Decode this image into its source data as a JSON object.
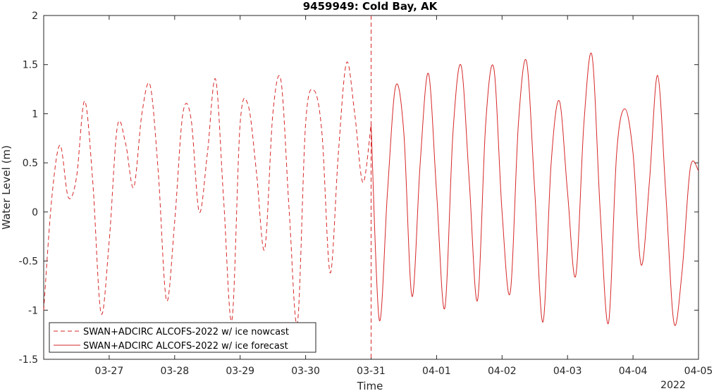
{
  "chart_data": {
    "type": "line",
    "title": "9459949: Cold Bay, AK",
    "xlabel": "Time",
    "ylabel": "Water Level (m)",
    "x_year_label": "2022",
    "ylim": [
      -1.5,
      2
    ],
    "xlim": [
      "2022-03-26 00:00",
      "2022-04-05 00:00"
    ],
    "yticks": [
      "-1.5",
      "-1",
      "-0.5",
      "0",
      "0.5",
      "1",
      "1.5",
      "2"
    ],
    "xticks": [
      "03-27",
      "03-28",
      "03-29",
      "03-30",
      "03-31",
      "04-01",
      "04-02",
      "04-03",
      "04-04",
      "04-05"
    ],
    "grid": false,
    "legend_position": "bottom-left",
    "forecast_start": "2022-03-31 00:00",
    "colors": {
      "series": "#d62728",
      "axis": "#262626"
    },
    "series": [
      {
        "name": "SWAN+ADCIRC ALCOFS-2022 w/ ice nowcast",
        "style": "dashed",
        "x": [
          "03-26 00:00",
          "03-26 03:00",
          "03-26 06:00",
          "03-26 09:00",
          "03-26 12:00",
          "03-26 15:00",
          "03-26 18:00",
          "03-26 21:00",
          "03-27 00:00",
          "03-27 03:00",
          "03-27 06:00",
          "03-27 09:00",
          "03-27 12:00",
          "03-27 15:00",
          "03-27 18:00",
          "03-27 21:00",
          "03-28 00:00",
          "03-28 03:00",
          "03-28 06:00",
          "03-28 09:00",
          "03-28 12:00",
          "03-28 15:00",
          "03-28 18:00",
          "03-28 21:00",
          "03-29 00:00",
          "03-29 03:00",
          "03-29 06:00",
          "03-29 09:00",
          "03-29 12:00",
          "03-29 15:00",
          "03-29 18:00",
          "03-29 21:00",
          "03-30 00:00",
          "03-30 03:00",
          "03-30 06:00",
          "03-30 09:00",
          "03-30 12:00",
          "03-30 15:00",
          "03-30 18:00",
          "03-30 21:00",
          "03-31 00:00"
        ],
        "y": [
          -1.0,
          0.15,
          0.68,
          0.15,
          0.35,
          1.13,
          0.3,
          -1.03,
          -0.3,
          0.87,
          0.7,
          0.25,
          1.0,
          1.29,
          0.4,
          -0.9,
          -0.1,
          1.0,
          0.95,
          0.0,
          0.6,
          1.35,
          0.1,
          -1.1,
          0.9,
          1.08,
          0.4,
          -0.38,
          1.0,
          1.33,
          0.0,
          -1.13,
          0.9,
          1.24,
          0.8,
          -0.62,
          0.6,
          1.52,
          1.0,
          0.3,
          0.9
        ]
      },
      {
        "name": "SWAN+ADCIRC ALCOFS-2022 w/ ice forecast",
        "style": "solid",
        "x": [
          "03-31 00:00",
          "03-31 03:00",
          "03-31 06:00",
          "03-31 09:00",
          "03-31 12:00",
          "03-31 15:00",
          "03-31 18:00",
          "03-31 21:00",
          "04-01 00:00",
          "04-01 03:00",
          "04-01 06:00",
          "04-01 09:00",
          "04-01 12:00",
          "04-01 15:00",
          "04-01 18:00",
          "04-01 21:00",
          "04-02 00:00",
          "04-02 03:00",
          "04-02 06:00",
          "04-02 09:00",
          "04-02 12:00",
          "04-02 15:00",
          "04-02 18:00",
          "04-02 21:00",
          "04-03 00:00",
          "04-03 03:00",
          "04-03 06:00",
          "04-03 09:00",
          "04-03 12:00",
          "04-03 15:00",
          "04-03 18:00",
          "04-03 21:00",
          "04-04 00:00",
          "04-04 03:00",
          "04-04 06:00",
          "04-04 09:00",
          "04-04 12:00",
          "04-04 15:00",
          "04-04 18:00",
          "04-04 21:00",
          "04-05 00:00"
        ],
        "y": [
          0.9,
          -1.1,
          0.2,
          1.28,
          0.8,
          -0.86,
          0.5,
          1.41,
          0.2,
          -0.98,
          0.8,
          1.49,
          0.3,
          -0.9,
          0.9,
          1.46,
          0.0,
          -0.82,
          0.9,
          1.53,
          0.2,
          -1.12,
          0.5,
          1.13,
          0.2,
          -0.65,
          0.9,
          1.59,
          0.0,
          -1.13,
          0.6,
          1.05,
          0.6,
          -0.54,
          0.3,
          1.39,
          0.2,
          -1.13,
          -0.6,
          0.45,
          0.42
        ]
      }
    ]
  }
}
